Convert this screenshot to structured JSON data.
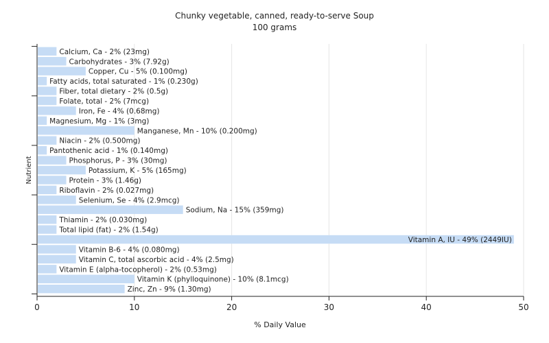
{
  "chart_data": {
    "type": "bar",
    "orientation": "horizontal",
    "title": "Chunky vegetable, canned, ready-to-serve Soup",
    "subtitle": "100 grams",
    "xlabel": "% Daily Value",
    "ylabel": "Nutrient",
    "xlim": [
      0,
      50
    ],
    "xticks": [
      0,
      10,
      20,
      30,
      40,
      50
    ],
    "grid": true,
    "bar_color": "#c6dcf5",
    "categories": [
      "Calcium, Ca",
      "Carbohydrates",
      "Copper, Cu",
      "Fatty acids, total saturated",
      "Fiber, total dietary",
      "Folate, total",
      "Iron, Fe",
      "Magnesium, Mg",
      "Manganese, Mn",
      "Niacin",
      "Pantothenic acid",
      "Phosphorus, P",
      "Potassium, K",
      "Protein",
      "Riboflavin",
      "Selenium, Se",
      "Sodium, Na",
      "Thiamin",
      "Total lipid (fat)",
      "Vitamin A, IU",
      "Vitamin B-6",
      "Vitamin C, total ascorbic acid",
      "Vitamin E (alpha-tocopherol)",
      "Vitamin K (phylloquinone)",
      "Zinc, Zn"
    ],
    "values": [
      2,
      3,
      5,
      1,
      2,
      2,
      4,
      1,
      10,
      2,
      1,
      3,
      5,
      3,
      2,
      4,
      15,
      2,
      2,
      49,
      4,
      4,
      2,
      10,
      9
    ],
    "labels": [
      "Calcium, Ca - 2% (23mg)",
      "Carbohydrates - 3% (7.92g)",
      "Copper, Cu - 5% (0.100mg)",
      "Fatty acids, total saturated - 1% (0.230g)",
      "Fiber, total dietary - 2% (0.5g)",
      "Folate, total - 2% (7mcg)",
      "Iron, Fe - 4% (0.68mg)",
      "Magnesium, Mg - 1% (3mg)",
      "Manganese, Mn - 10% (0.200mg)",
      "Niacin - 2% (0.500mg)",
      "Pantothenic acid - 1% (0.140mg)",
      "Phosphorus, P - 3% (30mg)",
      "Potassium, K - 5% (165mg)",
      "Protein - 3% (1.46g)",
      "Riboflavin - 2% (0.027mg)",
      "Selenium, Se - 4% (2.9mcg)",
      "Sodium, Na - 15% (359mg)",
      "Thiamin - 2% (0.030mg)",
      "Total lipid (fat) - 2% (1.54g)",
      "Vitamin A, IU - 49% (2449IU)",
      "Vitamin B-6 - 4% (0.080mg)",
      "Vitamin C, total ascorbic acid - 4% (2.5mg)",
      "Vitamin E (alpha-tocopherol) - 2% (0.53mg)",
      "Vitamin K (phylloquinone) - 10% (8.1mcg)",
      "Zinc, Zn - 9% (1.30mg)"
    ]
  }
}
